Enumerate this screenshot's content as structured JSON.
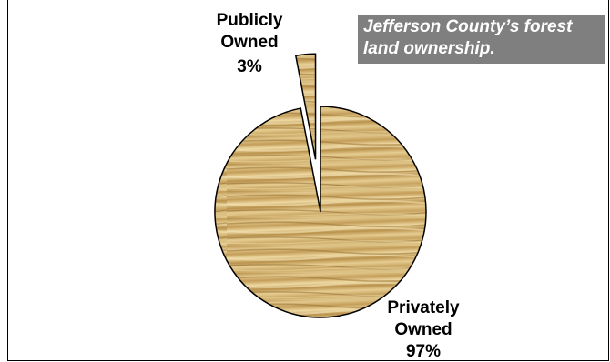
{
  "chart_data": {
    "type": "pie",
    "title": "Jefferson County’s forest land ownership.",
    "slices": [
      {
        "label_line1": "Publicly",
        "label_line2": "Owned",
        "percent_label": "3%",
        "value": 3,
        "exploded": true
      },
      {
        "label_line1": "Privately",
        "label_line2": "Owned",
        "percent_label": "97%",
        "value": 97,
        "exploded": false
      }
    ],
    "legend": "none",
    "colors": {
      "wood_base": "#c9a862",
      "wood_light": "#e8d29a",
      "wood_dark": "#8f6a2e",
      "title_bg": "#7f7f7f",
      "title_text": "#ffffff",
      "outline": "#000000"
    }
  }
}
